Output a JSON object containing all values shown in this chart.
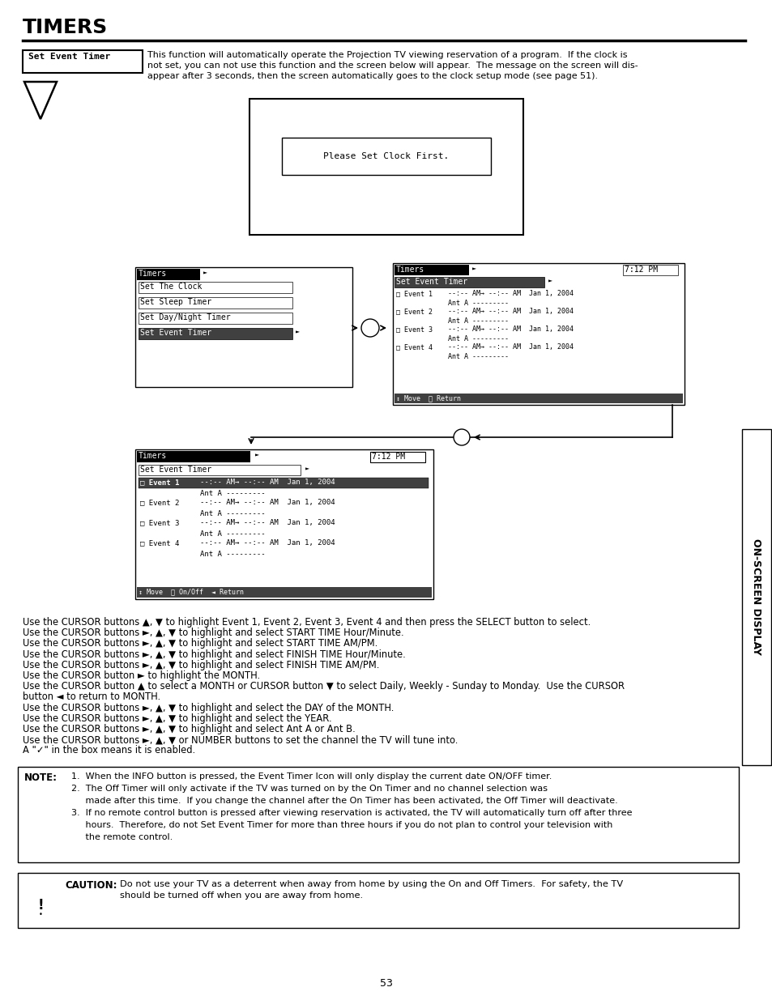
{
  "title": "TIMERS",
  "page_number": "53",
  "sidebar_text": "ON-SCREEN DISPLAY",
  "set_event_timer_label": "Set Event Timer",
  "intro_line1": "This function will automatically operate the Projection TV viewing reservation of a program.  If the clock is",
  "intro_line2": "not set, you can not use this function and the screen below will appear.  The message on the screen will dis-",
  "intro_line3": "appear after 3 seconds, then the screen automatically goes to the clock setup mode (see page 51).",
  "please_set_clock": "Please Set Clock First.",
  "menu1_items": [
    "Set The Clock",
    "Set Sleep Timer",
    "Set Day/Night Timer",
    "Set Event Timer"
  ],
  "menu1_selected": "Set Event Timer",
  "menu2_time": "7:12 PM",
  "menu3_time": "7:12 PM",
  "body_lines": [
    "Use the CURSOR buttons ▲, ▼ to highlight Event 1, Event 2, Event 3, Event 4 and then press the SELECT button to select.",
    "Use the CURSOR buttons ►, ▲, ▼ to highlight and select START TIME Hour/Minute.",
    "Use the CURSOR buttons ►, ▲, ▼ to highlight and select START TIME AM/PM.",
    "Use the CURSOR buttons ►, ▲, ▼ to highlight and select FINISH TIME Hour/Minute.",
    "Use the CURSOR buttons ►, ▲, ▼ to highlight and select FINISH TIME AM/PM.",
    "Use the CURSOR button ► to highlight the MONTH.",
    "Use the CURSOR button ▲ to select a MONTH or CURSOR button ▼ to select Daily, Weekly - Sunday to Monday.  Use the CURSOR",
    "button ◄ to return to MONTH.",
    "Use the CURSOR buttons ►, ▲, ▼ to highlight and select the DAY of the MONTH.",
    "Use the CURSOR buttons ►, ▲, ▼ to highlight and select the YEAR.",
    "Use the CURSOR buttons ►, ▲, ▼ to highlight and select Ant A or Ant B.",
    "Use the CURSOR buttons ►, ▲, ▼ or NUMBER buttons to set the channel the TV will tune into.",
    "A \"✓\" in the box means it is enabled."
  ],
  "note_lines": [
    "1.  When the INFO button is pressed, the Event Timer Icon will only display the current date ON/OFF timer.",
    "2.  The Off Timer will only activate if the TV was turned on by the On Timer and no channel selection was",
    "     made after this time.  If you change the channel after the On Timer has been activated, the Off Timer will deactivate.",
    "3.  If no remote control button is pressed after viewing reservation is activated, the TV will automatically turn off after three",
    "     hours.  Therefore, do not Set Event Timer for more than three hours if you do not plan to control your television with",
    "     the remote control."
  ],
  "caution_line1": "Do not use your TV as a deterrent when away from home by using the On and Off Timers.  For safety, the TV",
  "caution_line2": "should be turned off when you are away from home."
}
